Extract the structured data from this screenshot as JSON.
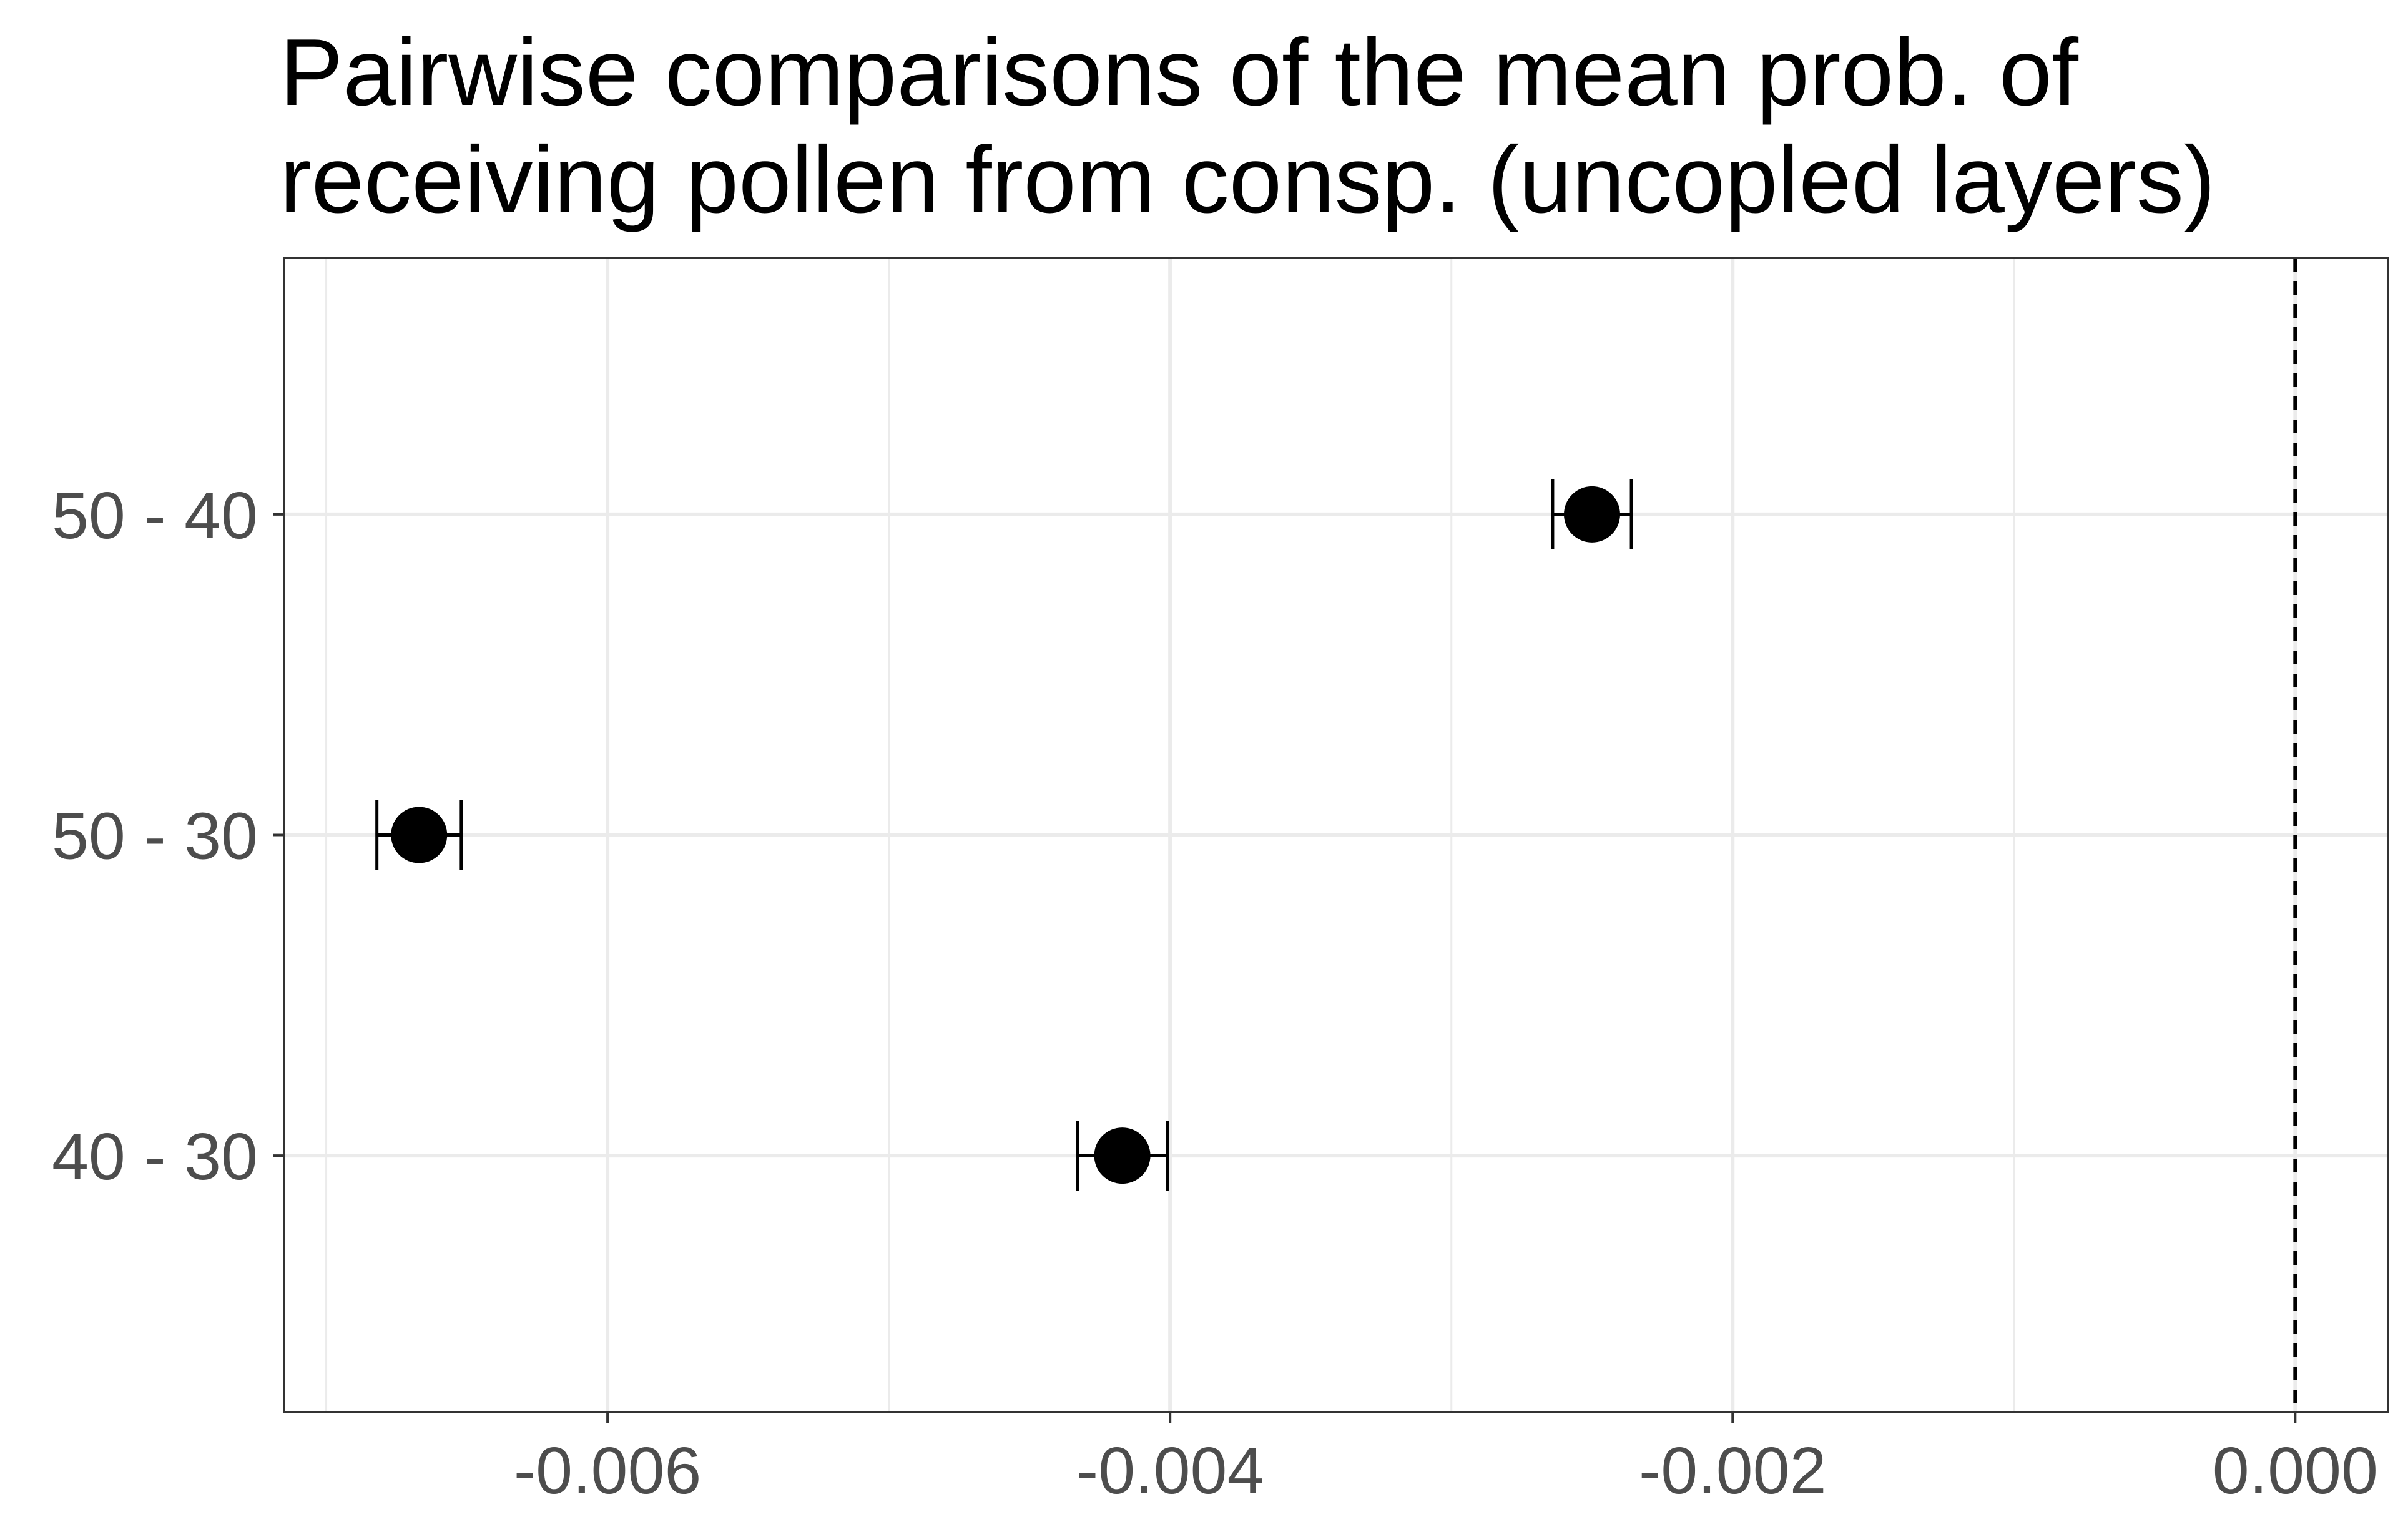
{
  "chart_data": {
    "type": "scatter",
    "title_lines": [
      "Pairwise comparisons of the mean prob. of",
      "receiving pollen from consp. (uncopled layers)"
    ],
    "xlabel": "",
    "ylabel": "",
    "xlim": [
      -0.00715,
      0.00033
    ],
    "x_ticks": [
      -0.006,
      -0.004,
      -0.002,
      0.0
    ],
    "x_tick_labels": [
      "-0.006",
      "-0.004",
      "-0.002",
      "0.000"
    ],
    "y_categories": [
      "40 - 30",
      "50 - 30",
      "50 - 40"
    ],
    "points": [
      {
        "label": "50 - 40",
        "estimate": -0.0025,
        "lower": -0.00264,
        "upper": -0.00236
      },
      {
        "label": "50 - 30",
        "estimate": -0.00667,
        "lower": -0.00682,
        "upper": -0.00652
      },
      {
        "label": "40 - 30",
        "estimate": -0.00417,
        "lower": -0.00433,
        "upper": -0.00401
      }
    ],
    "reference_line": {
      "x": 0.0,
      "style": "dashed"
    },
    "grid": true,
    "legend": "none",
    "colors": {
      "point": "#000000",
      "grid": "#ebebeb",
      "axis_text": "#4d4d4d",
      "panel_border": "#333333"
    }
  }
}
